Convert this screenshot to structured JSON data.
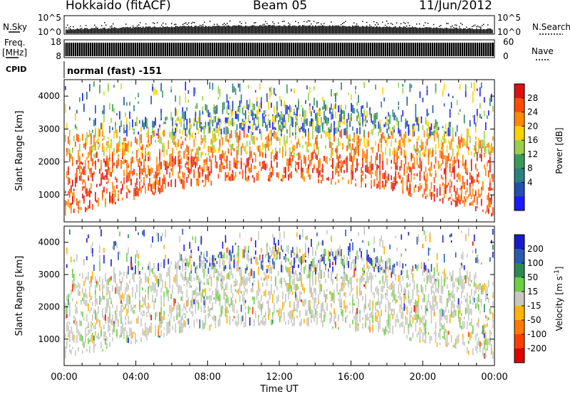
{
  "header": {
    "station": "Hokkaido (fitACF)",
    "beam": "Beam 05",
    "date": "11/Jun/2012"
  },
  "left_labels": {
    "nsky": "N.Sky",
    "freq_top": "Freq.",
    "freq_unit": "[MHz]",
    "cpid": "CPID"
  },
  "right_labels": {
    "nsearch": "N.Search",
    "nave": "Nave"
  },
  "cpid_text": "normal (fast) -151",
  "chart_data": [
    {
      "type": "scatter",
      "panel": "noise",
      "yticks_left": [
        "10^5",
        "10^0"
      ],
      "yticks_right": [
        "10^5",
        "10^0"
      ],
      "series_left": "N.Sky",
      "series_right": "N.Search"
    },
    {
      "type": "bar",
      "panel": "frequency",
      "yticks_left": [
        "18",
        "8"
      ],
      "yticks_right": [
        "60",
        "0"
      ],
      "series_left": "Freq.",
      "series_right": "Nave"
    },
    {
      "type": "heatmap",
      "panel": "power",
      "ylabel": "Slant Range [km]",
      "yticks": [
        "4000",
        "3000",
        "2000",
        "1000"
      ],
      "ylim": [
        180,
        4500
      ],
      "xlim": [
        "00:00",
        "24:00"
      ],
      "colorbar": {
        "label": "Power [dB]",
        "ticks": [
          "28",
          "24",
          "20",
          "16",
          "12",
          "8",
          "4"
        ],
        "colors": [
          "#e01010",
          "#ff4a00",
          "#ff8a00",
          "#ffd200",
          "#9ad04a",
          "#3a9a5a",
          "#2a7f7f",
          "#2050b0",
          "#1a1aff"
        ]
      }
    },
    {
      "type": "heatmap",
      "panel": "velocity",
      "ylabel": "Slant Range [km]",
      "yticks": [
        "4000",
        "3000",
        "2000",
        "1000"
      ],
      "ylim": [
        180,
        4500
      ],
      "xlim": [
        "00:00",
        "24:00"
      ],
      "xlabel": "Time UT",
      "xticks": [
        "00:00",
        "04:00",
        "08:00",
        "12:00",
        "16:00",
        "20:00",
        "00:00"
      ],
      "colorbar": {
        "label": "Velocity [m s",
        "label_sup": "-1",
        "label_end": "]",
        "ticks": [
          "200",
          "100",
          "50",
          "15",
          "-15",
          "-50",
          "-100",
          "-200"
        ],
        "colors": [
          "#1a1acd",
          "#2a5ab0",
          "#2a8a50",
          "#6ad040",
          "#c8c8c0",
          "#ffb400",
          "#ff7800",
          "#ff3c00",
          "#e00000"
        ]
      }
    }
  ]
}
